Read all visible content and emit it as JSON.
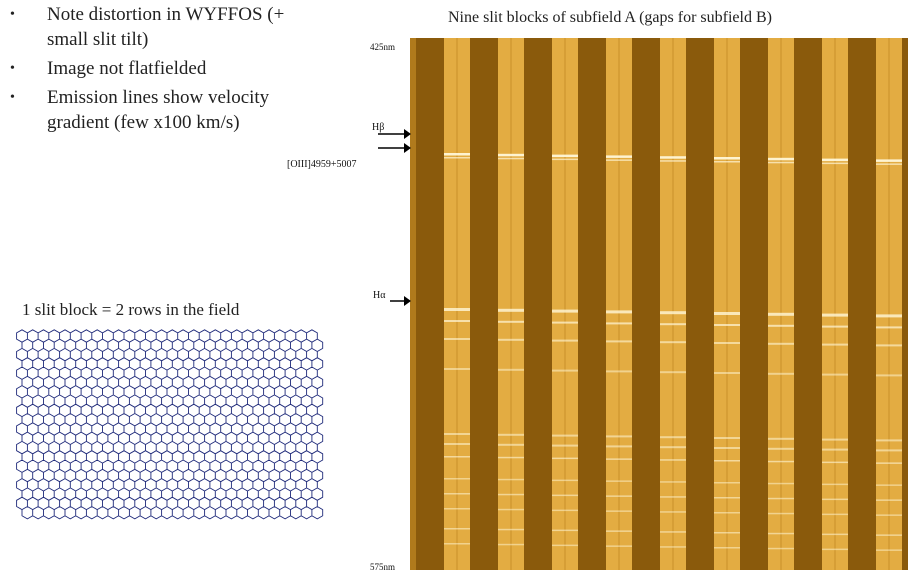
{
  "bullets": [
    "Note distortion in WYFFOS (+ small slit tilt)",
    "Image not flatfielded",
    "Emission lines show velocity gradient (few x100 km/s)"
  ],
  "bullet_symbol": "•",
  "slit_caption": "1 slit block = 2 rows in the field",
  "spectrum": {
    "title": "Nine slit blocks of subfield A (gaps for subfield B)",
    "wavelength_top": "425nm",
    "wavelength_bottom": "575nm",
    "line_labels": [
      "Hβ",
      "[OIII]4959+5007",
      "Hα"
    ],
    "slit_blocks": 9
  },
  "colors": {
    "dark_band": "#8a5a0c",
    "bright_band": "#e3ac42",
    "hex_outline": "#1f2a7a"
  }
}
